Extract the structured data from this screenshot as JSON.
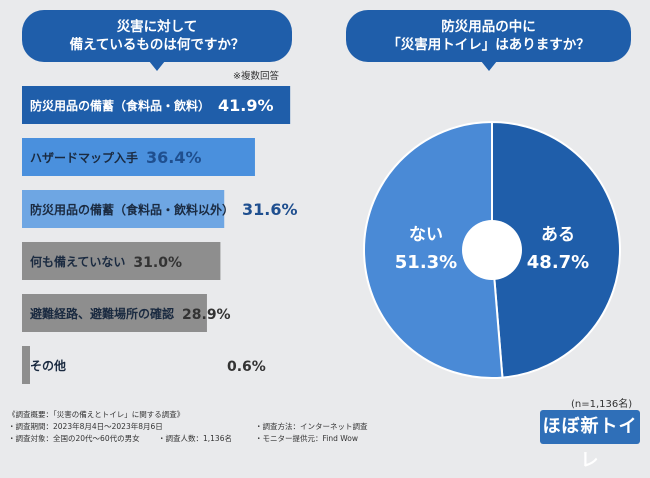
{
  "question_left": {
    "line1": "災害に対して",
    "line2": "備えているものは何ですか？"
  },
  "question_right": {
    "line1": "防災用品の中に",
    "line2": "「災害用トイレ」はありますか？"
  },
  "note": "※複数回答",
  "sample_size": "(n=1,136名)",
  "chart_data": [
    {
      "type": "bar",
      "orientation": "horizontal",
      "title": "災害に対して備えているものは何ですか？",
      "categories": [
        "防災用品の備蓄（食料品・飲料）",
        "ハザードマップ入手",
        "防災用品の備蓄（食料品・飲料以外）",
        "何も備えていない",
        "避難経路、避難場所の確認",
        "その他"
      ],
      "values": [
        41.9,
        36.4,
        31.6,
        31.0,
        28.9,
        0.6
      ],
      "value_labels": [
        "41.9%",
        "36.4%",
        "31.6%",
        "31.0%",
        "28.9%",
        "0.6%"
      ],
      "xlim": [
        0,
        50
      ],
      "colors": [
        "#1f5eaa",
        "#4a90dd",
        "#6ea6e3",
        "#8e8e8e",
        "#8e8e8e",
        "#8e8e8e"
      ]
    },
    {
      "type": "pie",
      "title": "防災用品の中に「災害用トイレ」はありますか？",
      "labels": [
        "ある",
        "ない"
      ],
      "values": [
        48.7,
        51.3
      ],
      "value_labels": [
        "48.7%",
        "51.3%"
      ],
      "colors": [
        "#1f5eaa",
        "#4a8ad6"
      ]
    }
  ],
  "footer": {
    "summary": "《調査概要：「災害の備えとトイレ」に関する調査》",
    "period": "・調査期間：2023年8月4日～2023年8月6日",
    "method": "・調査方法：インターネット調査",
    "target": "・調査対象：全国の20代～60代の男女",
    "count": "・調査人数：1,136名",
    "provider": "・モニター提供元：Find Wow"
  },
  "logo": {
    "text": "ほぼ新トイレ"
  }
}
